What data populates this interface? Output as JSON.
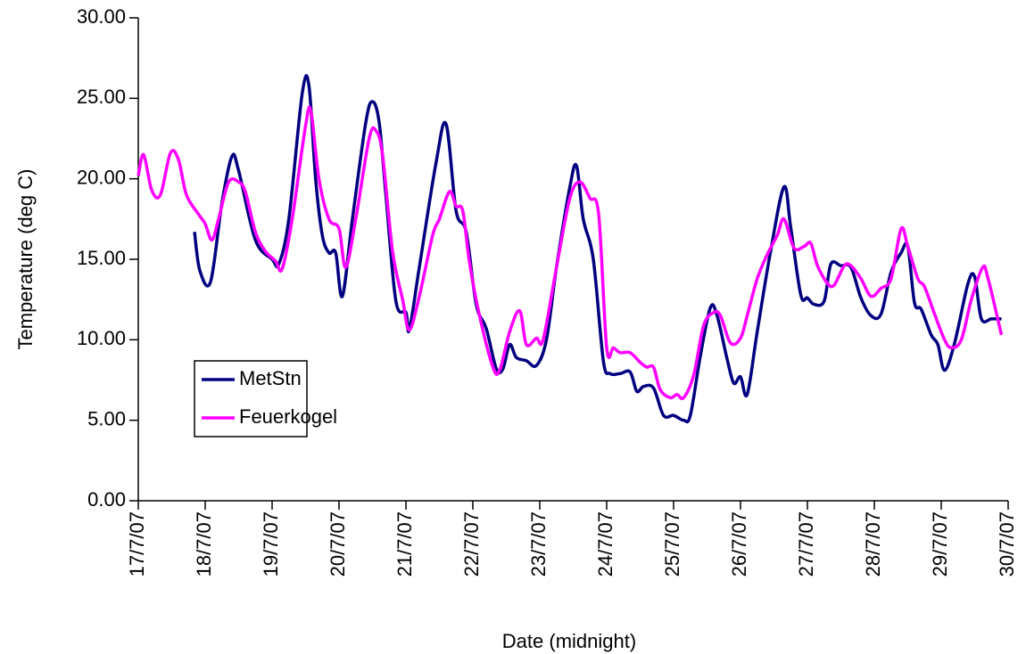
{
  "chart_data": {
    "type": "line",
    "xlabel": "Date (midnight)",
    "ylabel": "Temperature (deg C)",
    "xlim": [
      0,
      13
    ],
    "ylim": [
      0,
      30
    ],
    "xticks": [
      {
        "value": 0,
        "label": "17/7/07"
      },
      {
        "value": 1,
        "label": "18/7/07"
      },
      {
        "value": 2,
        "label": "19/7/07"
      },
      {
        "value": 3,
        "label": "20/7/07"
      },
      {
        "value": 4,
        "label": "21/7/07"
      },
      {
        "value": 5,
        "label": "22/7/07"
      },
      {
        "value": 6,
        "label": "23/7/07"
      },
      {
        "value": 7,
        "label": "24/7/07"
      },
      {
        "value": 8,
        "label": "25/7/07"
      },
      {
        "value": 9,
        "label": "26/7/07"
      },
      {
        "value": 10,
        "label": "27/7/07"
      },
      {
        "value": 11,
        "label": "28/7/07"
      },
      {
        "value": 12,
        "label": "29/7/07"
      },
      {
        "value": 13,
        "label": "30/7/07"
      }
    ],
    "yticks": [
      {
        "value": 0,
        "label": "0.00"
      },
      {
        "value": 5,
        "label": "5.00"
      },
      {
        "value": 10,
        "label": "10.00"
      },
      {
        "value": 15,
        "label": "15.00"
      },
      {
        "value": 20,
        "label": "20.00"
      },
      {
        "value": 25,
        "label": "25.00"
      },
      {
        "value": 30,
        "label": "30.00"
      }
    ],
    "grid": false,
    "legend": "lower left",
    "series": [
      {
        "name": "MetStn",
        "color": "#000080",
        "x": [
          0.84,
          0.92,
          1.08,
          1.25,
          1.4,
          1.5,
          1.75,
          2.0,
          2.1,
          2.25,
          2.45,
          2.55,
          2.65,
          2.75,
          2.85,
          2.95,
          3.05,
          3.2,
          3.4,
          3.5,
          3.6,
          3.7,
          3.85,
          4.0,
          4.05,
          4.2,
          4.45,
          4.6,
          4.75,
          4.9,
          5.05,
          5.2,
          5.35,
          5.45,
          5.55,
          5.65,
          5.8,
          5.95,
          6.1,
          6.25,
          6.45,
          6.55,
          6.65,
          6.8,
          6.95,
          7.05,
          7.2,
          7.35,
          7.45,
          7.55,
          7.7,
          7.85,
          8.0,
          8.15,
          8.25,
          8.4,
          8.55,
          8.65,
          8.8,
          8.9,
          9.0,
          9.1,
          9.25,
          9.45,
          9.65,
          9.75,
          9.9,
          10.0,
          10.1,
          10.25,
          10.35,
          10.5,
          10.65,
          10.8,
          10.95,
          11.1,
          11.25,
          11.4,
          11.5,
          11.6,
          11.7,
          11.85,
          11.95,
          12.05,
          12.2,
          12.4,
          12.5,
          12.6,
          12.75,
          12.9
        ],
        "values": [
          16.7,
          14.3,
          13.6,
          18.5,
          21.4,
          20.5,
          16.2,
          15.0,
          14.7,
          17.5,
          25.3,
          25.8,
          20,
          16.5,
          15.4,
          15.4,
          12.7,
          17.5,
          23.5,
          24.8,
          23.5,
          19,
          12.4,
          11.7,
          10.6,
          14.5,
          21,
          23.4,
          18,
          16.7,
          12.2,
          10.7,
          8.2,
          8.2,
          9.7,
          8.9,
          8.7,
          8.4,
          10,
          14.5,
          19.5,
          20.8,
          17.5,
          15,
          8.7,
          7.9,
          7.9,
          8.0,
          6.8,
          7.1,
          7.0,
          5.3,
          5.3,
          5.0,
          5.3,
          9,
          12.0,
          11.5,
          8.8,
          7.3,
          7.7,
          6.6,
          10.5,
          15.5,
          19.5,
          17,
          12.8,
          12.6,
          12.2,
          12.4,
          14.7,
          14.6,
          14.5,
          12.6,
          11.5,
          11.6,
          14.2,
          15.4,
          15.8,
          12.3,
          11.9,
          10.3,
          9.7,
          8.1,
          9.8,
          13.5,
          13.9,
          11.3,
          11.3,
          11.3
        ]
      },
      {
        "name": "Feuerkogel",
        "color": "#ff00ff",
        "x": [
          0.0,
          0.08,
          0.2,
          0.33,
          0.48,
          0.6,
          0.72,
          0.9,
          1.0,
          1.1,
          1.2,
          1.35,
          1.5,
          1.6,
          1.75,
          1.9,
          2.05,
          2.15,
          2.3,
          2.5,
          2.58,
          2.7,
          2.85,
          3.0,
          3.1,
          3.25,
          3.45,
          3.55,
          3.65,
          3.8,
          3.95,
          4.05,
          4.2,
          4.4,
          4.5,
          4.65,
          4.75,
          4.85,
          4.95,
          5.1,
          5.3,
          5.4,
          5.55,
          5.7,
          5.8,
          5.95,
          6.05,
          6.25,
          6.45,
          6.6,
          6.75,
          6.88,
          7.0,
          7.1,
          7.2,
          7.35,
          7.5,
          7.6,
          7.7,
          7.8,
          7.95,
          8.05,
          8.15,
          8.3,
          8.45,
          8.6,
          8.7,
          8.85,
          9.0,
          9.1,
          9.25,
          9.4,
          9.55,
          9.65,
          9.8,
          9.95,
          10.05,
          10.15,
          10.3,
          10.4,
          10.55,
          10.65,
          10.8,
          10.95,
          11.1,
          11.25,
          11.4,
          11.5,
          11.65,
          11.75,
          11.9,
          12.05,
          12.15,
          12.3,
          12.45,
          12.62,
          12.7,
          12.9
        ],
        "values": [
          20.2,
          21.5,
          19.3,
          19.0,
          21.6,
          21.2,
          19.0,
          17.8,
          17.2,
          16.2,
          17.5,
          19.8,
          19.8,
          19.2,
          16.7,
          15.5,
          14.9,
          14.4,
          17.5,
          23.3,
          24.2,
          20,
          17.5,
          16.9,
          14.5,
          17.5,
          22.5,
          23.0,
          21.5,
          15.5,
          12.5,
          10.6,
          12.7,
          16.5,
          17.5,
          19.2,
          18.3,
          18.0,
          14.8,
          11.5,
          8.3,
          8.1,
          10.5,
          11.8,
          9.7,
          10.1,
          10.0,
          14.5,
          18.8,
          19.8,
          18.8,
          17.8,
          9.5,
          9.5,
          9.2,
          9.2,
          8.6,
          8.3,
          8.3,
          6.9,
          6.4,
          6.6,
          6.4,
          7.8,
          10.9,
          11.7,
          11.5,
          9.8,
          10.1,
          11.5,
          13.8,
          15.3,
          16.5,
          17.5,
          15.7,
          15.8,
          16.0,
          14.6,
          13.5,
          13.4,
          14.6,
          14.6,
          13.8,
          12.7,
          13.2,
          13.8,
          16.9,
          15.8,
          13.8,
          13.3,
          11.6,
          10.0,
          9.5,
          10.0,
          12.5,
          14.5,
          13.8,
          10.3
        ]
      }
    ]
  }
}
